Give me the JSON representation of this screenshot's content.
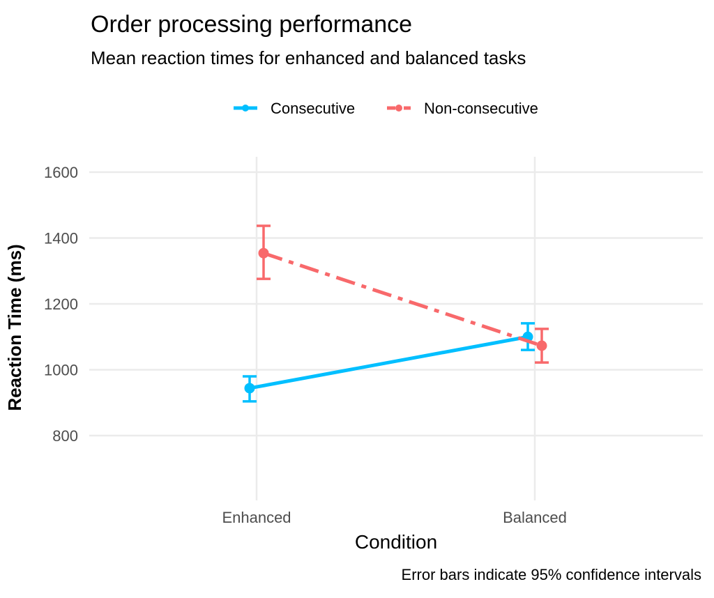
{
  "chart_data": {
    "type": "line",
    "title": "Order processing performance",
    "subtitle": "Mean reaction times for enhanced and balanced tasks",
    "xlabel": "Condition",
    "ylabel": "Reaction Time (ms)",
    "caption": "Error bars indicate 95% confidence intervals",
    "categories": [
      "Enhanced",
      "Balanced"
    ],
    "ylim": [
      700,
      1650
    ],
    "yticks": [
      800,
      1000,
      1200,
      1400,
      1600
    ],
    "grid": true,
    "legend_position": "top",
    "series": [
      {
        "name": "Consecutive",
        "color": "#00BFFF",
        "linestyle": "solid",
        "values": [
          944,
          1100
        ],
        "ci_lower": [
          904,
          1060
        ],
        "ci_upper": [
          980,
          1141
        ]
      },
      {
        "name": "Non-consecutive",
        "color": "#F8696B",
        "linestyle": "dashdot",
        "values": [
          1354,
          1073
        ],
        "ci_lower": [
          1276,
          1022
        ],
        "ci_upper": [
          1437,
          1124
        ]
      }
    ]
  }
}
